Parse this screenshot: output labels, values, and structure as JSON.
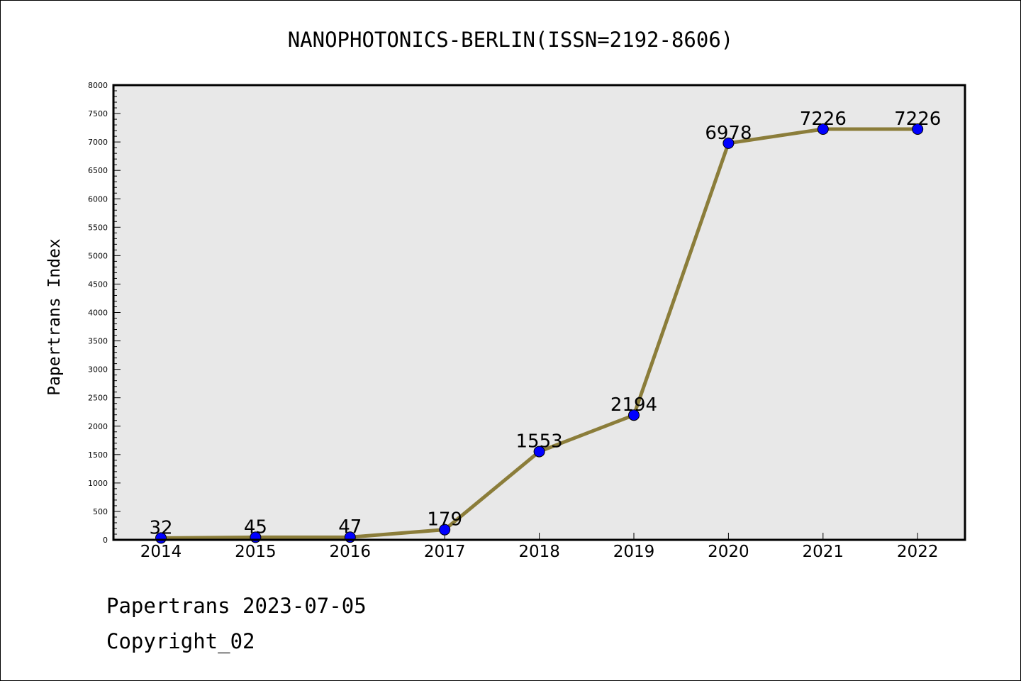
{
  "chart_data": {
    "type": "line",
    "title": "NANOPHOTONICS-BERLIN(ISSN=2192-8606)",
    "xlabel": "",
    "ylabel": "Papertrans Index",
    "categories": [
      "2014",
      "2015",
      "2016",
      "2017",
      "2018",
      "2019",
      "2020",
      "2021",
      "2022"
    ],
    "values": [
      32,
      45,
      47,
      179,
      1553,
      2194,
      6978,
      7226,
      7226
    ],
    "data_labels": [
      "32",
      "45",
      "47",
      "179",
      "1553",
      "2194",
      "6978",
      "7226",
      "7226"
    ],
    "ylim": [
      0,
      8000
    ],
    "yticks": [
      "0",
      "500",
      "1000",
      "1500",
      "2000",
      "2500",
      "3000",
      "3500",
      "4000",
      "4500",
      "5000",
      "5500",
      "6000",
      "6500",
      "7000",
      "7500",
      "8000"
    ],
    "grid": false,
    "colors": {
      "line": "#8b7d3a",
      "marker": "#0000ff",
      "plot_bg": "#e8e8e8"
    }
  },
  "footer": {
    "line1": "Papertrans 2023-07-05",
    "line2": "Copyright_02"
  }
}
